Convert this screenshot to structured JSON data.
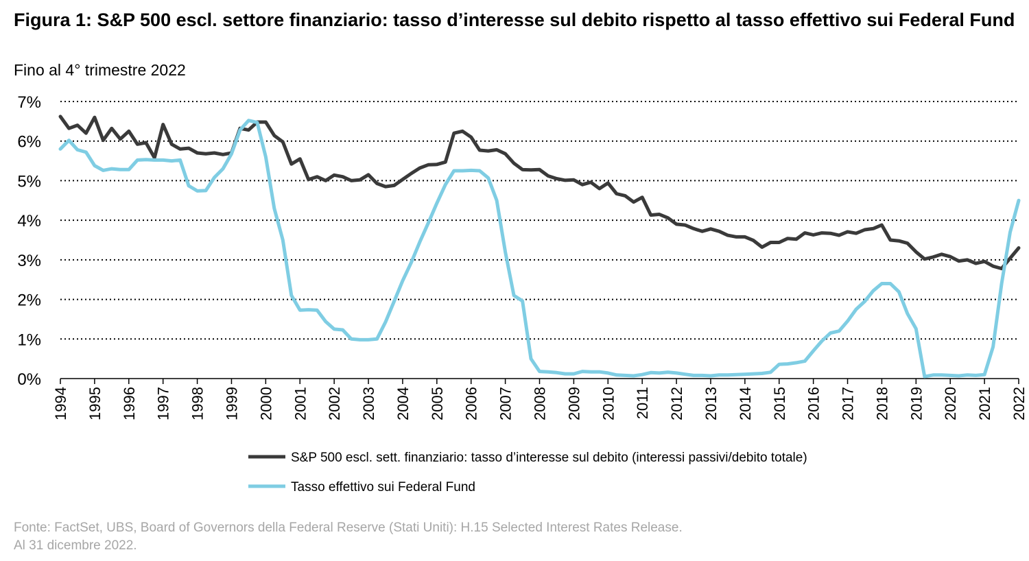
{
  "header": {
    "title": "Figura 1: S&P 500 escl. settore finanziario: tasso d’interesse sul debito rispetto al tasso effettivo sui Federal Fund",
    "subtitle": "Fino al 4° trimestre 2022"
  },
  "footer": {
    "source": "Fonte: FactSet, UBS, Board of Governors della Federal Reserve (Stati Uniti): H.15 Selected Interest Rates Release.",
    "date": "Al 31 dicembre 2022."
  },
  "colors": {
    "series_debt": "#3a3a3a",
    "series_fed": "#7fcde3",
    "grid": "#000000"
  },
  "chart_data": {
    "type": "line",
    "xlabel": "",
    "ylabel": "",
    "ylim": [
      0,
      7
    ],
    "y_ticks": [
      "0%",
      "1%",
      "2%",
      "3%",
      "4%",
      "5%",
      "6%",
      "7%"
    ],
    "x_ticks": [
      "1994",
      "1995",
      "1996",
      "1997",
      "1998",
      "1999",
      "2000",
      "2001",
      "2002",
      "2003",
      "2004",
      "2005",
      "2006",
      "2007",
      "2008",
      "2009",
      "2010",
      "2011",
      "2012",
      "2013",
      "2014",
      "2015",
      "2016",
      "2017",
      "2018",
      "2019",
      "2020",
      "2021",
      "2022"
    ],
    "grid": "horizontal-dotted",
    "legend_position": "bottom",
    "x_start": "1994 Q1",
    "x_frequency": "quarterly",
    "series": [
      {
        "name": "S&P 500 escl. sett. finanziario: tasso d’interesse sul debito (interessi passivi/debito totale)",
        "values": [
          6.62,
          6.32,
          6.4,
          6.2,
          6.6,
          6.02,
          6.32,
          6.05,
          6.25,
          5.92,
          5.96,
          5.58,
          6.42,
          5.92,
          5.8,
          5.82,
          5.7,
          5.68,
          5.7,
          5.66,
          5.7,
          6.32,
          6.28,
          6.48,
          6.48,
          6.14,
          5.98,
          5.42,
          5.55,
          5.03,
          5.1,
          5.0,
          5.14,
          5.1,
          5.0,
          5.02,
          5.15,
          4.93,
          4.85,
          4.88,
          5.03,
          5.18,
          5.32,
          5.4,
          5.41,
          5.47,
          6.2,
          6.25,
          6.1,
          5.77,
          5.75,
          5.78,
          5.68,
          5.44,
          5.28,
          5.27,
          5.28,
          5.12,
          5.05,
          5.01,
          5.02,
          4.9,
          4.96,
          4.8,
          4.94,
          4.67,
          4.62,
          4.46,
          4.58,
          4.13,
          4.15,
          4.06,
          3.9,
          3.88,
          3.79,
          3.72,
          3.78,
          3.72,
          3.62,
          3.58,
          3.58,
          3.49,
          3.32,
          3.44,
          3.44,
          3.54,
          3.52,
          3.68,
          3.63,
          3.68,
          3.67,
          3.62,
          3.71,
          3.67,
          3.76,
          3.79,
          3.88,
          3.5,
          3.48,
          3.42,
          3.2,
          3.02,
          3.07,
          3.14,
          3.08,
          2.97,
          3.0,
          2.91,
          2.96,
          2.84,
          2.78,
          3.04,
          3.3
        ]
      },
      {
        "name": "Tasso effettivo sui Federal Fund",
        "values": [
          5.8,
          6.02,
          5.78,
          5.72,
          5.38,
          5.26,
          5.3,
          5.28,
          5.28,
          5.52,
          5.53,
          5.52,
          5.52,
          5.5,
          5.52,
          4.87,
          4.74,
          4.75,
          5.08,
          5.3,
          5.68,
          6.28,
          6.52,
          6.47,
          5.6,
          4.3,
          3.5,
          2.1,
          1.73,
          1.74,
          1.73,
          1.44,
          1.25,
          1.23,
          1.0,
          0.98,
          0.98,
          1.0,
          1.43,
          1.95,
          2.47,
          2.93,
          3.45,
          3.93,
          4.43,
          4.9,
          5.25,
          5.25,
          5.26,
          5.25,
          5.07,
          4.5,
          3.2,
          2.1,
          1.96,
          0.5,
          0.18,
          0.17,
          0.15,
          0.12,
          0.12,
          0.18,
          0.17,
          0.17,
          0.14,
          0.09,
          0.08,
          0.07,
          0.1,
          0.15,
          0.14,
          0.16,
          0.14,
          0.11,
          0.08,
          0.08,
          0.07,
          0.09,
          0.09,
          0.1,
          0.11,
          0.12,
          0.13,
          0.16,
          0.36,
          0.37,
          0.4,
          0.44,
          0.7,
          0.95,
          1.15,
          1.2,
          1.45,
          1.75,
          1.95,
          2.22,
          2.4,
          2.4,
          2.19,
          1.64,
          1.26,
          0.05,
          0.09,
          0.09,
          0.08,
          0.07,
          0.09,
          0.08,
          0.1,
          0.8,
          2.4,
          3.7,
          4.5
        ]
      }
    ]
  }
}
